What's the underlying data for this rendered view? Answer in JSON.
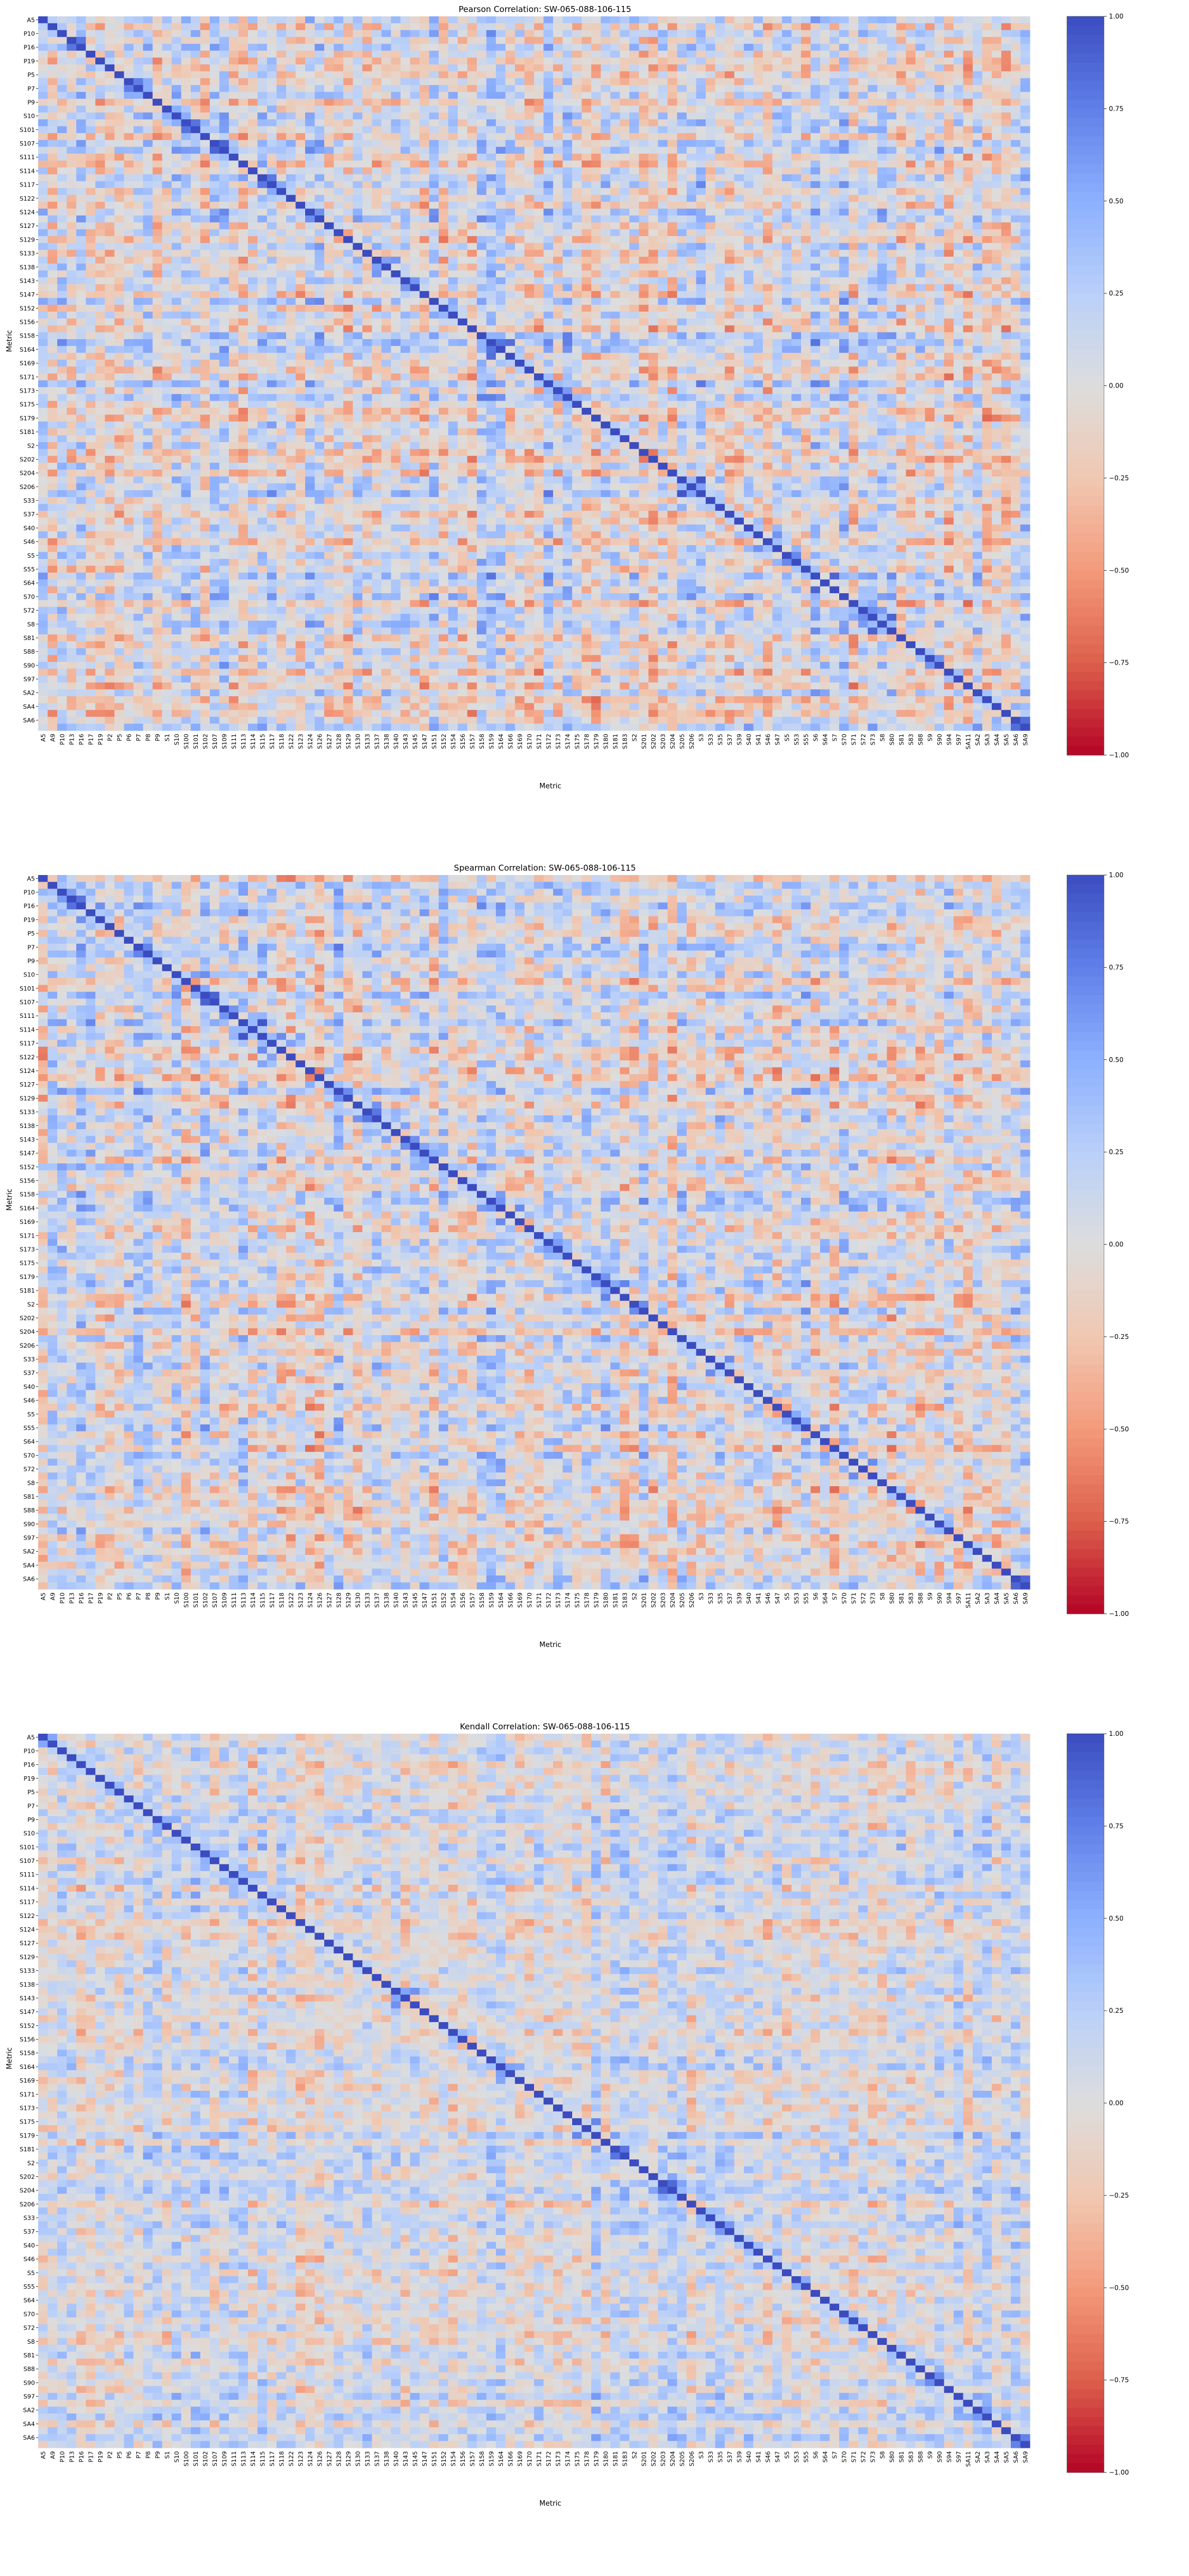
{
  "chart_data": [
    {
      "type": "heatmap",
      "title": "Pearson Correlation: SW-065-088-106-115",
      "xlabel": "Metric",
      "ylabel": "Metric",
      "colormap": "coolwarm_r",
      "value_range": [
        -1.0,
        1.0
      ],
      "colorbar_ticks": [
        -1.0,
        -0.75,
        -0.5,
        -0.25,
        0.0,
        0.25,
        0.5,
        0.75,
        1.0
      ],
      "colorbar_tick_labels": [
        "−1.00",
        "−0.75",
        "−0.50",
        "−0.25",
        "0.00",
        "0.25",
        "0.50",
        "0.75",
        "1.00"
      ],
      "tick_labels": [
        "A5",
        "A9",
        "P10",
        "P13",
        "P16",
        "P17",
        "P19",
        "P2",
        "P5",
        "P6",
        "P7",
        "P8",
        "P9",
        "S1",
        "S10",
        "S100",
        "S101",
        "S102",
        "S107",
        "S109",
        "S111",
        "S113",
        "S114",
        "S115",
        "S117",
        "S118",
        "S122",
        "S123",
        "S124",
        "S126",
        "S127",
        "S128",
        "S129",
        "S130",
        "S133",
        "S137",
        "S138",
        "S140",
        "S143",
        "S145",
        "S147",
        "S151",
        "S152",
        "S154",
        "S156",
        "S157",
        "S158",
        "S159",
        "S164",
        "S166",
        "S169",
        "S170",
        "S171",
        "S172",
        "S173",
        "S174",
        "S175",
        "S178",
        "S179",
        "S180",
        "S181",
        "S183",
        "S2",
        "S201",
        "S202",
        "S203",
        "S204",
        "S205",
        "S206",
        "S3",
        "S33",
        "S35",
        "S37",
        "S39",
        "S40",
        "S41",
        "S46",
        "S47",
        "S5",
        "S53",
        "S55",
        "S6",
        "S64",
        "S7",
        "S70",
        "S71",
        "S72",
        "S73",
        "S8",
        "S80",
        "S81",
        "S83",
        "S88",
        "S9",
        "S90",
        "S94",
        "S97",
        "SA11",
        "SA2",
        "SA3",
        "SA4",
        "SA5",
        "SA6",
        "SA9"
      ],
      "notes_on_values": "Diagonal equals 1.00; off-diagonal values mostly between −0.5 and 0.9 (visual estimates)."
    },
    {
      "type": "heatmap",
      "title": "Spearman Correlation: SW-065-088-106-115",
      "xlabel": "Metric",
      "ylabel": "Metric",
      "colormap": "coolwarm_r",
      "value_range": [
        -1.0,
        1.0
      ],
      "colorbar_ticks": [
        -1.0,
        -0.75,
        -0.5,
        -0.25,
        0.0,
        0.25,
        0.5,
        0.75,
        1.0
      ],
      "colorbar_tick_labels": [
        "−1.00",
        "−0.75",
        "−0.50",
        "−0.25",
        "0.00",
        "0.25",
        "0.50",
        "0.75",
        "1.00"
      ],
      "tick_labels": [
        "A5",
        "A9",
        "P10",
        "P13",
        "P16",
        "P17",
        "P19",
        "P2",
        "P5",
        "P6",
        "P7",
        "P8",
        "P9",
        "S1",
        "S10",
        "S100",
        "S101",
        "S102",
        "S107",
        "S109",
        "S111",
        "S113",
        "S114",
        "S115",
        "S117",
        "S118",
        "S122",
        "S123",
        "S124",
        "S126",
        "S127",
        "S128",
        "S129",
        "S130",
        "S133",
        "S137",
        "S138",
        "S140",
        "S143",
        "S145",
        "S147",
        "S151",
        "S152",
        "S154",
        "S156",
        "S157",
        "S158",
        "S159",
        "S164",
        "S166",
        "S169",
        "S170",
        "S171",
        "S172",
        "S173",
        "S174",
        "S175",
        "S178",
        "S179",
        "S180",
        "S181",
        "S183",
        "S2",
        "S201",
        "S202",
        "S203",
        "S204",
        "S205",
        "S206",
        "S3",
        "S33",
        "S35",
        "S37",
        "S39",
        "S40",
        "S41",
        "S46",
        "S47",
        "S5",
        "S53",
        "S55",
        "S6",
        "S64",
        "S7",
        "S70",
        "S71",
        "S72",
        "S73",
        "S8",
        "S80",
        "S81",
        "S83",
        "S88",
        "S9",
        "S90",
        "S94",
        "S97",
        "SA11",
        "SA2",
        "SA3",
        "SA4",
        "SA5",
        "SA6",
        "SA9"
      ],
      "notes_on_values": "Diagonal equals 1.00; off-diagonal values mostly between −0.6 and 0.9 (visual estimates)."
    },
    {
      "type": "heatmap",
      "title": "Kendall Correlation: SW-065-088-106-115",
      "xlabel": "Metric",
      "ylabel": "Metric",
      "colormap": "coolwarm_r",
      "value_range": [
        -1.0,
        1.0
      ],
      "colorbar_ticks": [
        -1.0,
        -0.75,
        -0.5,
        -0.25,
        0.0,
        0.25,
        0.5,
        0.75,
        1.0
      ],
      "colorbar_tick_labels": [
        "−1.00",
        "−0.75",
        "−0.50",
        "−0.25",
        "0.00",
        "0.25",
        "0.50",
        "0.75",
        "1.00"
      ],
      "tick_labels": [
        "A5",
        "A9",
        "P10",
        "P13",
        "P16",
        "P17",
        "P19",
        "P2",
        "P5",
        "P6",
        "P7",
        "P8",
        "P9",
        "S1",
        "S10",
        "S100",
        "S101",
        "S102",
        "S107",
        "S109",
        "S111",
        "S113",
        "S114",
        "S115",
        "S117",
        "S118",
        "S122",
        "S123",
        "S124",
        "S126",
        "S127",
        "S128",
        "S129",
        "S130",
        "S133",
        "S137",
        "S138",
        "S140",
        "S143",
        "S145",
        "S147",
        "S151",
        "S152",
        "S154",
        "S156",
        "S157",
        "S158",
        "S159",
        "S164",
        "S166",
        "S169",
        "S170",
        "S171",
        "S172",
        "S173",
        "S174",
        "S175",
        "S178",
        "S179",
        "S180",
        "S181",
        "S183",
        "S2",
        "S201",
        "S202",
        "S203",
        "S204",
        "S205",
        "S206",
        "S3",
        "S33",
        "S35",
        "S37",
        "S39",
        "S40",
        "S41",
        "S46",
        "S47",
        "S5",
        "S53",
        "S55",
        "S6",
        "S64",
        "S7",
        "S70",
        "S71",
        "S72",
        "S73",
        "S8",
        "S80",
        "S81",
        "S83",
        "S88",
        "S9",
        "S90",
        "S94",
        "S97",
        "SA11",
        "SA2",
        "SA3",
        "SA4",
        "SA5",
        "SA6",
        "SA9"
      ],
      "notes_on_values": "Diagonal equals 1.00; off-diagonal values mostly between −0.5 and 0.8 (visual estimates)."
    }
  ]
}
